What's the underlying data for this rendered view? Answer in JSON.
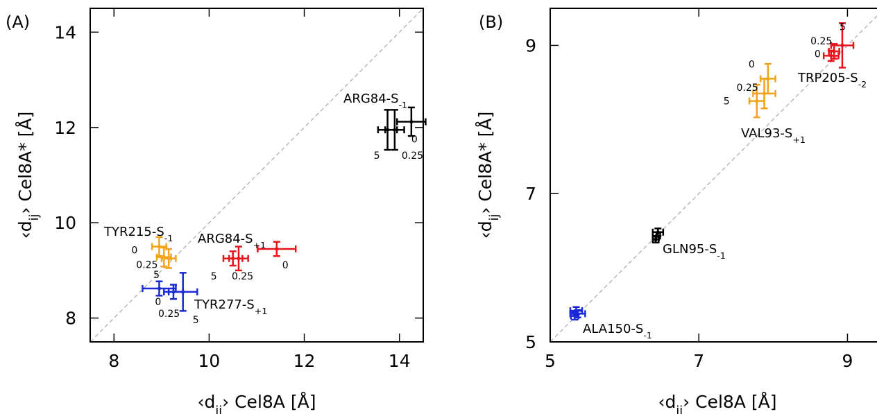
{
  "colors": {
    "black": "#000000",
    "red": "#e8141b",
    "orange": "#f5a31a",
    "blue": "#1a28d6",
    "diagonal": "#b0b0b0"
  },
  "chart_data": [
    {
      "panel_label": "(A)",
      "type": "scatter",
      "xlabel": {
        "pre": "‹d",
        "sub": "ij",
        "post": "› Cel8A [Å]"
      },
      "ylabel": {
        "pre": "‹d",
        "sub": "ij",
        "post": "› Cel8A* [Å]"
      },
      "xlim": [
        7.5,
        14.5
      ],
      "ylim": [
        7.5,
        14.5
      ],
      "xticks": [
        "8",
        "10",
        "12",
        "14"
      ],
      "yticks": [
        "8",
        "10",
        "12",
        "14"
      ],
      "diagonal": true,
      "series": [
        {
          "label": {
            "pre": "ARG84-S",
            "sub": "-1"
          },
          "color": "black",
          "points": [
            {
              "x": 14.25,
              "y": 12.12,
              "xerr": 0.3,
              "yerr": 0.3,
              "tag": "0"
            },
            {
              "x": 13.9,
              "y": 11.95,
              "xerr": 0.2,
              "yerr": 0.42,
              "tag": "0.25"
            },
            {
              "x": 13.75,
              "y": 11.95,
              "xerr": 0.2,
              "yerr": 0.42,
              "tag": "5"
            }
          ]
        },
        {
          "label": {
            "pre": "ARG84-S",
            "sub": "+1"
          },
          "color": "red",
          "points": [
            {
              "x": 11.42,
              "y": 9.45,
              "xerr": 0.4,
              "yerr": 0.15,
              "tag": "0"
            },
            {
              "x": 10.62,
              "y": 9.25,
              "xerr": 0.2,
              "yerr": 0.25,
              "tag": "0.25"
            },
            {
              "x": 10.5,
              "y": 9.25,
              "xerr": 0.2,
              "yerr": 0.15,
              "tag": "5"
            }
          ]
        },
        {
          "label": {
            "pre": "TYR215-S",
            "sub": "-1"
          },
          "color": "orange",
          "points": [
            {
              "x": 8.95,
              "y": 9.5,
              "xerr": 0.15,
              "yerr": 0.2,
              "tag": "0"
            },
            {
              "x": 9.05,
              "y": 9.28,
              "xerr": 0.15,
              "yerr": 0.2,
              "tag": "0.25"
            },
            {
              "x": 9.15,
              "y": 9.25,
              "xerr": 0.15,
              "yerr": 0.2,
              "tag": "5"
            }
          ]
        },
        {
          "label": {
            "pre": "TYR277-S",
            "sub": "+1"
          },
          "color": "blue",
          "points": [
            {
              "x": 8.95,
              "y": 8.62,
              "xerr": 0.35,
              "yerr": 0.15,
              "tag": "0"
            },
            {
              "x": 9.25,
              "y": 8.55,
              "xerr": 0.2,
              "yerr": 0.15,
              "tag": "0.25"
            },
            {
              "x": 9.45,
              "y": 8.55,
              "xerr": 0.3,
              "yerr": 0.4,
              "tag": "5"
            }
          ]
        }
      ]
    },
    {
      "panel_label": "(B)",
      "type": "scatter",
      "xlabel": {
        "pre": "‹d",
        "sub": "ij",
        "post": "› Cel8A [Å]"
      },
      "ylabel": {
        "pre": "‹d",
        "sub": "ij",
        "post": "› Cel8A* [Å]"
      },
      "xlim": [
        5,
        9.5
      ],
      "ylim": [
        5,
        9.5
      ],
      "xticks": [
        "5",
        "7",
        "9"
      ],
      "yticks": [
        "5",
        "7",
        "9"
      ],
      "diagonal": true,
      "series": [
        {
          "label": {
            "pre": "TRP205-S",
            "sub": "-2"
          },
          "color": "red",
          "points": [
            {
              "x": 8.78,
              "y": 8.86,
              "xerr": 0.1,
              "yerr": 0.07,
              "tag": "0"
            },
            {
              "x": 8.82,
              "y": 8.92,
              "xerr": 0.07,
              "yerr": 0.1,
              "tag": "0.25"
            },
            {
              "x": 8.93,
              "y": 9.0,
              "xerr": 0.15,
              "yerr": 0.3,
              "tag": "5"
            }
          ]
        },
        {
          "label": {
            "pre": "VAL93-S",
            "sub": "+1"
          },
          "color": "orange",
          "points": [
            {
              "x": 7.93,
              "y": 8.55,
              "xerr": 0.1,
              "yerr": 0.2,
              "tag": "0"
            },
            {
              "x": 7.88,
              "y": 8.35,
              "xerr": 0.15,
              "yerr": 0.2,
              "tag": "0.25"
            },
            {
              "x": 7.78,
              "y": 8.25,
              "xerr": 0.1,
              "yerr": 0.22,
              "tag": "5"
            }
          ]
        },
        {
          "label": {
            "pre": "GLN95-S",
            "sub": "-1"
          },
          "color": "black",
          "points": [
            {
              "x": 6.45,
              "y": 6.48,
              "xerr": 0.07,
              "yerr": 0.05,
              "tag": ""
            },
            {
              "x": 6.43,
              "y": 6.43,
              "xerr": 0.05,
              "yerr": 0.05,
              "tag": ""
            },
            {
              "x": 6.42,
              "y": 6.38,
              "xerr": 0.04,
              "yerr": 0.04,
              "tag": ""
            }
          ]
        },
        {
          "label": {
            "pre": "ALA150-S",
            "sub": "-1"
          },
          "color": "blue",
          "points": [
            {
              "x": 5.35,
              "y": 5.42,
              "xerr": 0.08,
              "yerr": 0.05,
              "tag": ""
            },
            {
              "x": 5.37,
              "y": 5.38,
              "xerr": 0.1,
              "yerr": 0.05,
              "tag": ""
            },
            {
              "x": 5.33,
              "y": 5.35,
              "xerr": 0.05,
              "yerr": 0.05,
              "tag": ""
            }
          ]
        }
      ]
    }
  ]
}
